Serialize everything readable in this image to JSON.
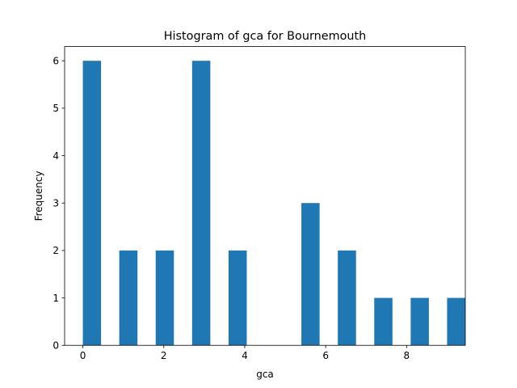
{
  "chart_data": {
    "type": "bar",
    "title": "Histogram of gca for Bournemouth",
    "xlabel": "gca",
    "ylabel": "Frequency",
    "bins": [
      {
        "x": 0.225,
        "value": 6
      },
      {
        "x": 1.125,
        "value": 2
      },
      {
        "x": 2.025,
        "value": 2
      },
      {
        "x": 2.925,
        "value": 6
      },
      {
        "x": 3.825,
        "value": 2
      },
      {
        "x": 4.725,
        "value": 0
      },
      {
        "x": 5.625,
        "value": 3
      },
      {
        "x": 6.525,
        "value": 2
      },
      {
        "x": 7.425,
        "value": 1
      },
      {
        "x": 8.325,
        "value": 1
      },
      {
        "x": 9.225,
        "value": 1
      }
    ],
    "bin_width": 0.45,
    "xlim": [
      -0.45,
      9.45
    ],
    "ylim": [
      0,
      6.3
    ],
    "x_ticks": [
      "0",
      "2",
      "4",
      "6",
      "8"
    ],
    "y_ticks": [
      "0",
      "1",
      "2",
      "3",
      "4",
      "5",
      "6"
    ],
    "bar_color": "#1f77b4",
    "grid": false,
    "legend": "none"
  }
}
